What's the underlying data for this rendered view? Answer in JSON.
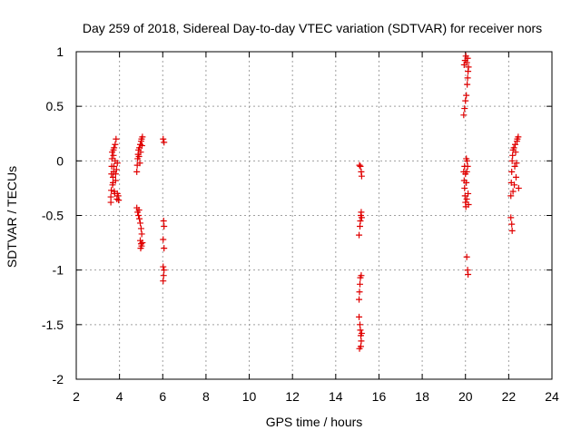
{
  "chart_data": {
    "type": "scatter",
    "title": "Day 259 of 2018, Sidereal Day-to-day VTEC variation (SDTVAR) for receiver nors",
    "xlabel": "GPS time / hours",
    "ylabel": "SDTVAR / TECUs",
    "xlim": [
      2,
      24
    ],
    "ylim": [
      -2,
      1
    ],
    "xticks": [
      "2",
      "4",
      "6",
      "8",
      "10",
      "12",
      "14",
      "16",
      "18",
      "20",
      "22",
      "24"
    ],
    "yticks": [
      "-2",
      "-1.5",
      "-1",
      "-0.5",
      "0",
      "0.5",
      "1"
    ],
    "grid": true,
    "marker": "plus",
    "color": "#e00000",
    "series": [
      {
        "name": "SDTVAR",
        "points": [
          [
            3.6,
            -0.38
          ],
          [
            3.6,
            -0.33
          ],
          [
            3.62,
            -0.27
          ],
          [
            3.63,
            -0.12
          ],
          [
            3.64,
            -0.05
          ],
          [
            3.65,
            0.02
          ],
          [
            3.66,
            0.08
          ],
          [
            3.68,
            -0.22
          ],
          [
            3.7,
            -0.15
          ],
          [
            3.72,
            0.05
          ],
          [
            3.73,
            -0.1
          ],
          [
            3.75,
            0.12
          ],
          [
            3.76,
            -0.28
          ],
          [
            3.78,
            -0.3
          ],
          [
            3.8,
            0.15
          ],
          [
            3.8,
            0.0
          ],
          [
            3.82,
            -0.18
          ],
          [
            3.84,
            0.2
          ],
          [
            3.86,
            -0.08
          ],
          [
            3.88,
            -0.35
          ],
          [
            3.9,
            -0.02
          ],
          [
            3.72,
            0.1
          ],
          [
            3.74,
            -0.05
          ],
          [
            3.82,
            -0.12
          ],
          [
            3.9,
            -0.3
          ],
          [
            3.94,
            -0.32
          ],
          [
            3.96,
            -0.36
          ],
          [
            3.7,
            -0.2
          ],
          [
            4.8,
            -0.1
          ],
          [
            4.82,
            -0.04
          ],
          [
            4.84,
            0.02
          ],
          [
            4.86,
            0.06
          ],
          [
            4.88,
            0.1
          ],
          [
            4.9,
            0.04
          ],
          [
            4.92,
            0.12
          ],
          [
            4.94,
            -0.02
          ],
          [
            4.96,
            0.15
          ],
          [
            4.98,
            0.08
          ],
          [
            5.0,
            0.18
          ],
          [
            5.02,
            0.2
          ],
          [
            5.04,
            0.14
          ],
          [
            5.06,
            0.22
          ],
          [
            4.8,
            -0.43
          ],
          [
            4.84,
            -0.47
          ],
          [
            4.88,
            -0.5
          ],
          [
            4.92,
            -0.53
          ],
          [
            4.96,
            -0.57
          ],
          [
            5.0,
            -0.62
          ],
          [
            5.03,
            -0.67
          ],
          [
            4.96,
            -0.73
          ],
          [
            5.0,
            -0.76
          ],
          [
            5.02,
            -0.78
          ],
          [
            4.98,
            -0.8
          ],
          [
            5.06,
            -0.75
          ],
          [
            4.9,
            -0.45
          ],
          [
            6.02,
            0.2
          ],
          [
            6.06,
            0.17
          ],
          [
            6.04,
            -0.55
          ],
          [
            6.06,
            -0.6
          ],
          [
            6.02,
            -0.72
          ],
          [
            6.06,
            -0.8
          ],
          [
            6.02,
            -0.97
          ],
          [
            6.06,
            -1.0
          ],
          [
            6.04,
            -1.05
          ],
          [
            6.02,
            -1.1
          ],
          [
            15.1,
            -0.04
          ],
          [
            15.14,
            -0.05
          ],
          [
            15.18,
            -0.1
          ],
          [
            15.2,
            -0.14
          ],
          [
            15.08,
            -0.68
          ],
          [
            15.12,
            -0.6
          ],
          [
            15.14,
            -0.55
          ],
          [
            15.16,
            -0.5
          ],
          [
            15.18,
            -0.47
          ],
          [
            15.2,
            -0.52
          ],
          [
            15.08,
            -1.27
          ],
          [
            15.1,
            -1.2
          ],
          [
            15.12,
            -1.13
          ],
          [
            15.14,
            -1.07
          ],
          [
            15.18,
            -1.05
          ],
          [
            15.08,
            -1.43
          ],
          [
            15.12,
            -1.5
          ],
          [
            15.14,
            -1.55
          ],
          [
            15.16,
            -1.6
          ],
          [
            15.18,
            -1.65
          ],
          [
            15.2,
            -1.58
          ],
          [
            15.1,
            -1.72
          ],
          [
            15.16,
            -1.7
          ],
          [
            19.92,
            0.42
          ],
          [
            19.96,
            0.48
          ],
          [
            20.0,
            0.55
          ],
          [
            20.04,
            0.6
          ],
          [
            20.08,
            0.7
          ],
          [
            20.1,
            0.76
          ],
          [
            20.12,
            0.82
          ],
          [
            19.94,
            0.88
          ],
          [
            19.98,
            0.92
          ],
          [
            20.02,
            0.96
          ],
          [
            20.06,
            0.9
          ],
          [
            20.1,
            0.94
          ],
          [
            20.14,
            0.86
          ],
          [
            19.92,
            -0.1
          ],
          [
            19.94,
            -0.18
          ],
          [
            19.96,
            -0.25
          ],
          [
            19.98,
            -0.32
          ],
          [
            20.0,
            -0.38
          ],
          [
            20.02,
            -0.42
          ],
          [
            20.04,
            -0.2
          ],
          [
            20.06,
            -0.1
          ],
          [
            20.08,
            0.0
          ],
          [
            20.1,
            -0.05
          ],
          [
            20.12,
            -0.3
          ],
          [
            20.14,
            -0.4
          ],
          [
            19.96,
            -0.05
          ],
          [
            20.0,
            -0.12
          ],
          [
            20.04,
            0.02
          ],
          [
            20.06,
            -0.35
          ],
          [
            20.06,
            -0.88
          ],
          [
            20.1,
            -1.0
          ],
          [
            20.12,
            -1.04
          ],
          [
            22.1,
            -0.32
          ],
          [
            22.12,
            -0.2
          ],
          [
            22.14,
            -0.1
          ],
          [
            22.16,
            0.0
          ],
          [
            22.18,
            0.05
          ],
          [
            22.2,
            0.1
          ],
          [
            22.24,
            0.12
          ],
          [
            22.28,
            -0.05
          ],
          [
            22.3,
            0.15
          ],
          [
            22.34,
            -0.15
          ],
          [
            22.38,
            0.18
          ],
          [
            22.4,
            0.2
          ],
          [
            22.44,
            0.22
          ],
          [
            22.46,
            -0.25
          ],
          [
            22.2,
            -0.28
          ],
          [
            22.26,
            -0.22
          ],
          [
            22.32,
            0.08
          ],
          [
            22.36,
            -0.02
          ],
          [
            22.1,
            -0.52
          ],
          [
            22.14,
            -0.58
          ],
          [
            22.16,
            -0.64
          ]
        ]
      }
    ]
  }
}
